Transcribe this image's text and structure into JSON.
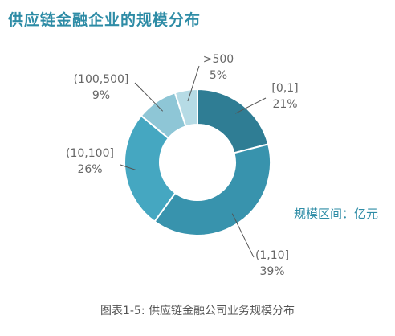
{
  "chart_data": {
    "type": "pie",
    "title": "供应链金融企业的规模分布",
    "unit_note": "规模区间：亿元",
    "caption": "图表1-5: 供应链金融公司业务规模分布",
    "categories": [
      "[0,1]",
      "(1,10]",
      "(10,100]",
      "(100,500]",
      ">500"
    ],
    "values": [
      21,
      39,
      26,
      9,
      5
    ],
    "value_labels": [
      "21%",
      "39%",
      "26%",
      "9%",
      "5%"
    ],
    "colors": [
      "#2f7d94",
      "#3893ad",
      "#45a7c1",
      "#8ec6d6",
      "#b6dbe5"
    ],
    "style": "donut"
  }
}
